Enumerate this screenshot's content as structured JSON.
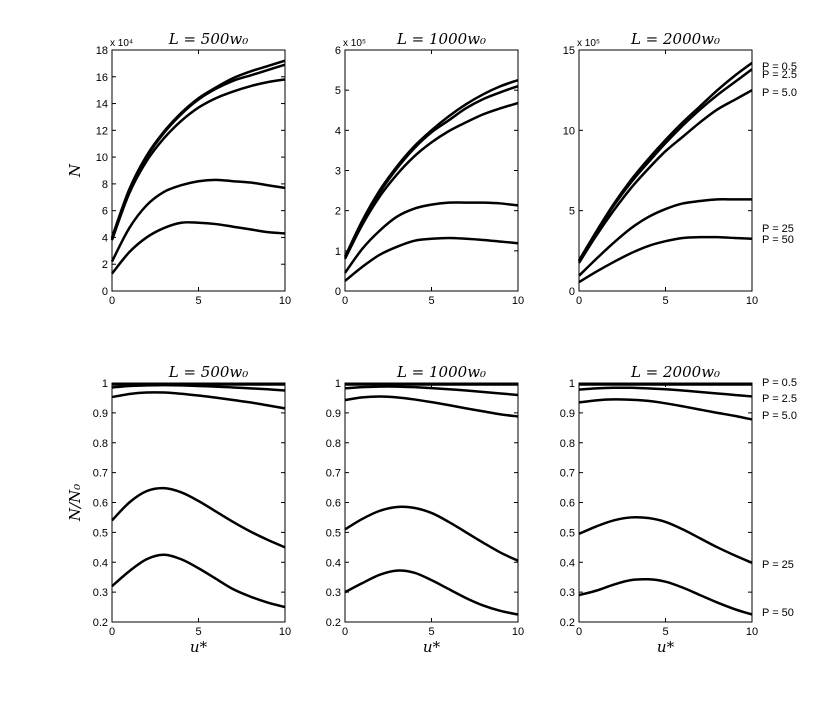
{
  "chart_data": [
    {
      "type": "line",
      "title": "L = 500w₀",
      "xlabel": "",
      "ylabel": "N",
      "xlim": [
        0,
        10
      ],
      "ylim": [
        0,
        18
      ],
      "xticks": [
        "0",
        "5",
        "10"
      ],
      "yticks": [
        "0",
        "2",
        "4",
        "6",
        "8",
        "10",
        "12",
        "14",
        "16",
        "18"
      ],
      "multiplier": "x 10⁴",
      "x": [
        0,
        1,
        2,
        3,
        4,
        5,
        6,
        7,
        8,
        9,
        10
      ],
      "series": [
        {
          "name": "P = 0.5",
          "values": [
            4.0,
            7.6,
            10.1,
            11.9,
            13.3,
            14.4,
            15.2,
            15.9,
            16.4,
            16.8,
            17.2
          ]
        },
        {
          "name": "P = 2.5",
          "values": [
            3.9,
            7.5,
            10.0,
            11.8,
            13.2,
            14.3,
            15.1,
            15.7,
            16.1,
            16.5,
            16.9
          ]
        },
        {
          "name": "P = 5.0",
          "values": [
            3.8,
            7.3,
            9.7,
            11.4,
            12.7,
            13.7,
            14.4,
            14.9,
            15.3,
            15.6,
            15.8
          ]
        },
        {
          "name": "P = 25",
          "values": [
            2.2,
            4.7,
            6.4,
            7.4,
            7.9,
            8.2,
            8.3,
            8.2,
            8.1,
            7.9,
            7.7
          ]
        },
        {
          "name": "P = 50",
          "values": [
            1.3,
            2.9,
            4.0,
            4.7,
            5.1,
            5.1,
            5.0,
            4.8,
            4.6,
            4.4,
            4.3
          ]
        }
      ]
    },
    {
      "type": "line",
      "title": "L = 1000w₀",
      "xlabel": "",
      "ylabel": "",
      "xlim": [
        0,
        10
      ],
      "ylim": [
        0,
        6
      ],
      "xticks": [
        "0",
        "5",
        "10"
      ],
      "yticks": [
        "0",
        "1",
        "2",
        "3",
        "4",
        "5",
        "6"
      ],
      "multiplier": "x 10⁵",
      "x": [
        0,
        1,
        2,
        3,
        4,
        5,
        6,
        7,
        8,
        9,
        10
      ],
      "series": [
        {
          "name": "P = 0.5",
          "values": [
            0.85,
            1.75,
            2.5,
            3.1,
            3.6,
            4.0,
            4.35,
            4.65,
            4.9,
            5.1,
            5.25
          ]
        },
        {
          "name": "P = 2.5",
          "values": [
            0.85,
            1.72,
            2.45,
            3.05,
            3.55,
            3.95,
            4.25,
            4.55,
            4.78,
            4.95,
            5.1
          ]
        },
        {
          "name": "P = 5.0",
          "values": [
            0.8,
            1.65,
            2.35,
            2.9,
            3.35,
            3.7,
            3.98,
            4.2,
            4.4,
            4.55,
            4.68
          ]
        },
        {
          "name": "P = 25",
          "values": [
            0.45,
            1.05,
            1.5,
            1.85,
            2.05,
            2.15,
            2.2,
            2.2,
            2.2,
            2.18,
            2.13
          ]
        },
        {
          "name": "P = 50",
          "values": [
            0.25,
            0.6,
            0.9,
            1.1,
            1.25,
            1.3,
            1.32,
            1.3,
            1.27,
            1.23,
            1.19
          ]
        }
      ]
    },
    {
      "type": "line",
      "title": "L = 2000w₀",
      "xlabel": "",
      "ylabel": "",
      "xlim": [
        0,
        10
      ],
      "ylim": [
        0,
        15
      ],
      "xticks": [
        "0",
        "5",
        "10"
      ],
      "yticks": [
        "0",
        "5",
        "10",
        "15"
      ],
      "multiplier": "x 10⁵",
      "x": [
        0,
        1,
        2,
        3,
        4,
        5,
        6,
        7,
        8,
        9,
        10
      ],
      "series": [
        {
          "name": "P = 0.5",
          "values": [
            1.9,
            3.7,
            5.4,
            6.9,
            8.2,
            9.4,
            10.5,
            11.5,
            12.5,
            13.4,
            14.2
          ]
        },
        {
          "name": "P = 2.5",
          "values": [
            1.85,
            3.6,
            5.3,
            6.75,
            8.0,
            9.2,
            10.3,
            11.3,
            12.2,
            13.0,
            13.8
          ]
        },
        {
          "name": "P = 5.0",
          "values": [
            1.75,
            3.45,
            5.0,
            6.4,
            7.6,
            8.7,
            9.6,
            10.5,
            11.3,
            11.9,
            12.5
          ]
        },
        {
          "name": "P = 25",
          "values": [
            0.95,
            2.0,
            3.0,
            3.9,
            4.6,
            5.1,
            5.45,
            5.6,
            5.7,
            5.7,
            5.7
          ]
        },
        {
          "name": "P = 50",
          "values": [
            0.55,
            1.2,
            1.8,
            2.35,
            2.8,
            3.1,
            3.3,
            3.35,
            3.35,
            3.3,
            3.25
          ]
        }
      ]
    },
    {
      "type": "line",
      "title": "L = 500w₀",
      "xlabel": "u*",
      "ylabel": "N/N₀",
      "xlim": [
        0,
        10
      ],
      "ylim": [
        0.2,
        1.0
      ],
      "xticks": [
        "0",
        "5",
        "10"
      ],
      "yticks": [
        "0.2",
        "0.3",
        "0.4",
        "0.5",
        "0.6",
        "0.7",
        "0.8",
        "0.9",
        "1"
      ],
      "x": [
        0,
        1,
        2,
        3,
        4,
        5,
        6,
        7,
        8,
        9,
        10
      ],
      "series": [
        {
          "name": "P = 0.5",
          "values": [
            0.995,
            0.995,
            0.995,
            0.995,
            0.995,
            0.995,
            0.995,
            0.995,
            0.995,
            0.995,
            0.995
          ]
        },
        {
          "name": "P = 2.5",
          "values": [
            0.985,
            0.99,
            0.992,
            0.993,
            0.992,
            0.99,
            0.988,
            0.985,
            0.982,
            0.979,
            0.975
          ]
        },
        {
          "name": "P = 5.0",
          "values": [
            0.953,
            0.963,
            0.968,
            0.968,
            0.964,
            0.958,
            0.951,
            0.943,
            0.935,
            0.925,
            0.915
          ]
        },
        {
          "name": "P = 25",
          "values": [
            0.54,
            0.6,
            0.638,
            0.648,
            0.634,
            0.605,
            0.57,
            0.535,
            0.503,
            0.475,
            0.45
          ]
        },
        {
          "name": "P = 50",
          "values": [
            0.32,
            0.37,
            0.41,
            0.425,
            0.41,
            0.38,
            0.345,
            0.31,
            0.285,
            0.265,
            0.25
          ]
        }
      ]
    },
    {
      "type": "line",
      "title": "L = 1000w₀",
      "xlabel": "u*",
      "ylabel": "",
      "xlim": [
        0,
        10
      ],
      "ylim": [
        0.2,
        1.0
      ],
      "xticks": [
        "0",
        "5",
        "10"
      ],
      "yticks": [
        "0.2",
        "0.3",
        "0.4",
        "0.5",
        "0.6",
        "0.7",
        "0.8",
        "0.9",
        "1"
      ],
      "x": [
        0,
        1,
        2,
        3,
        4,
        5,
        6,
        7,
        8,
        9,
        10
      ],
      "series": [
        {
          "name": "P = 0.5",
          "values": [
            0.995,
            0.995,
            0.995,
            0.995,
            0.995,
            0.995,
            0.995,
            0.995,
            0.995,
            0.995,
            0.995
          ]
        },
        {
          "name": "P = 2.5",
          "values": [
            0.982,
            0.986,
            0.988,
            0.988,
            0.986,
            0.983,
            0.979,
            0.975,
            0.97,
            0.965,
            0.96
          ]
        },
        {
          "name": "P = 5.0",
          "values": [
            0.943,
            0.952,
            0.955,
            0.952,
            0.945,
            0.936,
            0.926,
            0.915,
            0.905,
            0.895,
            0.888
          ]
        },
        {
          "name": "P = 25",
          "values": [
            0.51,
            0.545,
            0.572,
            0.585,
            0.582,
            0.565,
            0.535,
            0.5,
            0.465,
            0.432,
            0.405
          ]
        },
        {
          "name": "P = 50",
          "values": [
            0.3,
            0.33,
            0.358,
            0.372,
            0.365,
            0.34,
            0.31,
            0.28,
            0.255,
            0.237,
            0.225
          ]
        }
      ]
    },
    {
      "type": "line",
      "title": "L = 2000w₀",
      "xlabel": "u*",
      "ylabel": "",
      "xlim": [
        0,
        10
      ],
      "ylim": [
        0.2,
        1.0
      ],
      "xticks": [
        "0",
        "5",
        "10"
      ],
      "yticks": [
        "0.2",
        "0.3",
        "0.4",
        "0.5",
        "0.6",
        "0.7",
        "0.8",
        "0.9",
        "1"
      ],
      "x": [
        0,
        1,
        2,
        3,
        4,
        5,
        6,
        7,
        8,
        9,
        10
      ],
      "series": [
        {
          "name": "P = 0.5",
          "values": [
            0.995,
            0.995,
            0.995,
            0.995,
            0.995,
            0.995,
            0.995,
            0.995,
            0.995,
            0.995,
            0.995
          ]
        },
        {
          "name": "P = 2.5",
          "values": [
            0.978,
            0.982,
            0.984,
            0.984,
            0.982,
            0.979,
            0.975,
            0.97,
            0.965,
            0.96,
            0.955
          ]
        },
        {
          "name": "P = 5.0",
          "values": [
            0.935,
            0.942,
            0.945,
            0.944,
            0.94,
            0.932,
            0.922,
            0.911,
            0.9,
            0.89,
            0.878
          ]
        },
        {
          "name": "P = 25",
          "values": [
            0.495,
            0.52,
            0.54,
            0.55,
            0.548,
            0.535,
            0.51,
            0.48,
            0.45,
            0.423,
            0.398
          ]
        },
        {
          "name": "P = 50",
          "values": [
            0.29,
            0.305,
            0.325,
            0.34,
            0.343,
            0.335,
            0.315,
            0.29,
            0.265,
            0.243,
            0.225
          ]
        }
      ]
    }
  ],
  "legend_top": [
    {
      "label": "P = 0.5",
      "value": 0.5
    },
    {
      "label": "P = 2.5",
      "value": 2.5
    },
    {
      "label": "P = 5.0",
      "value": 5.0
    },
    {
      "label": "P = 25",
      "value": 25
    },
    {
      "label": "P = 50",
      "value": 50
    }
  ],
  "legend_bottom": [
    {
      "label": "P = 0.5",
      "value": 0.5
    },
    {
      "label": "P = 2.5",
      "value": 2.5
    },
    {
      "label": "P = 5.0",
      "value": 5.0
    },
    {
      "label": "P = 25",
      "value": 25
    },
    {
      "label": "P = 50",
      "value": 50
    }
  ],
  "style": {
    "line_color": "#000000",
    "axis_color": "#000000",
    "background": "#ffffff"
  }
}
